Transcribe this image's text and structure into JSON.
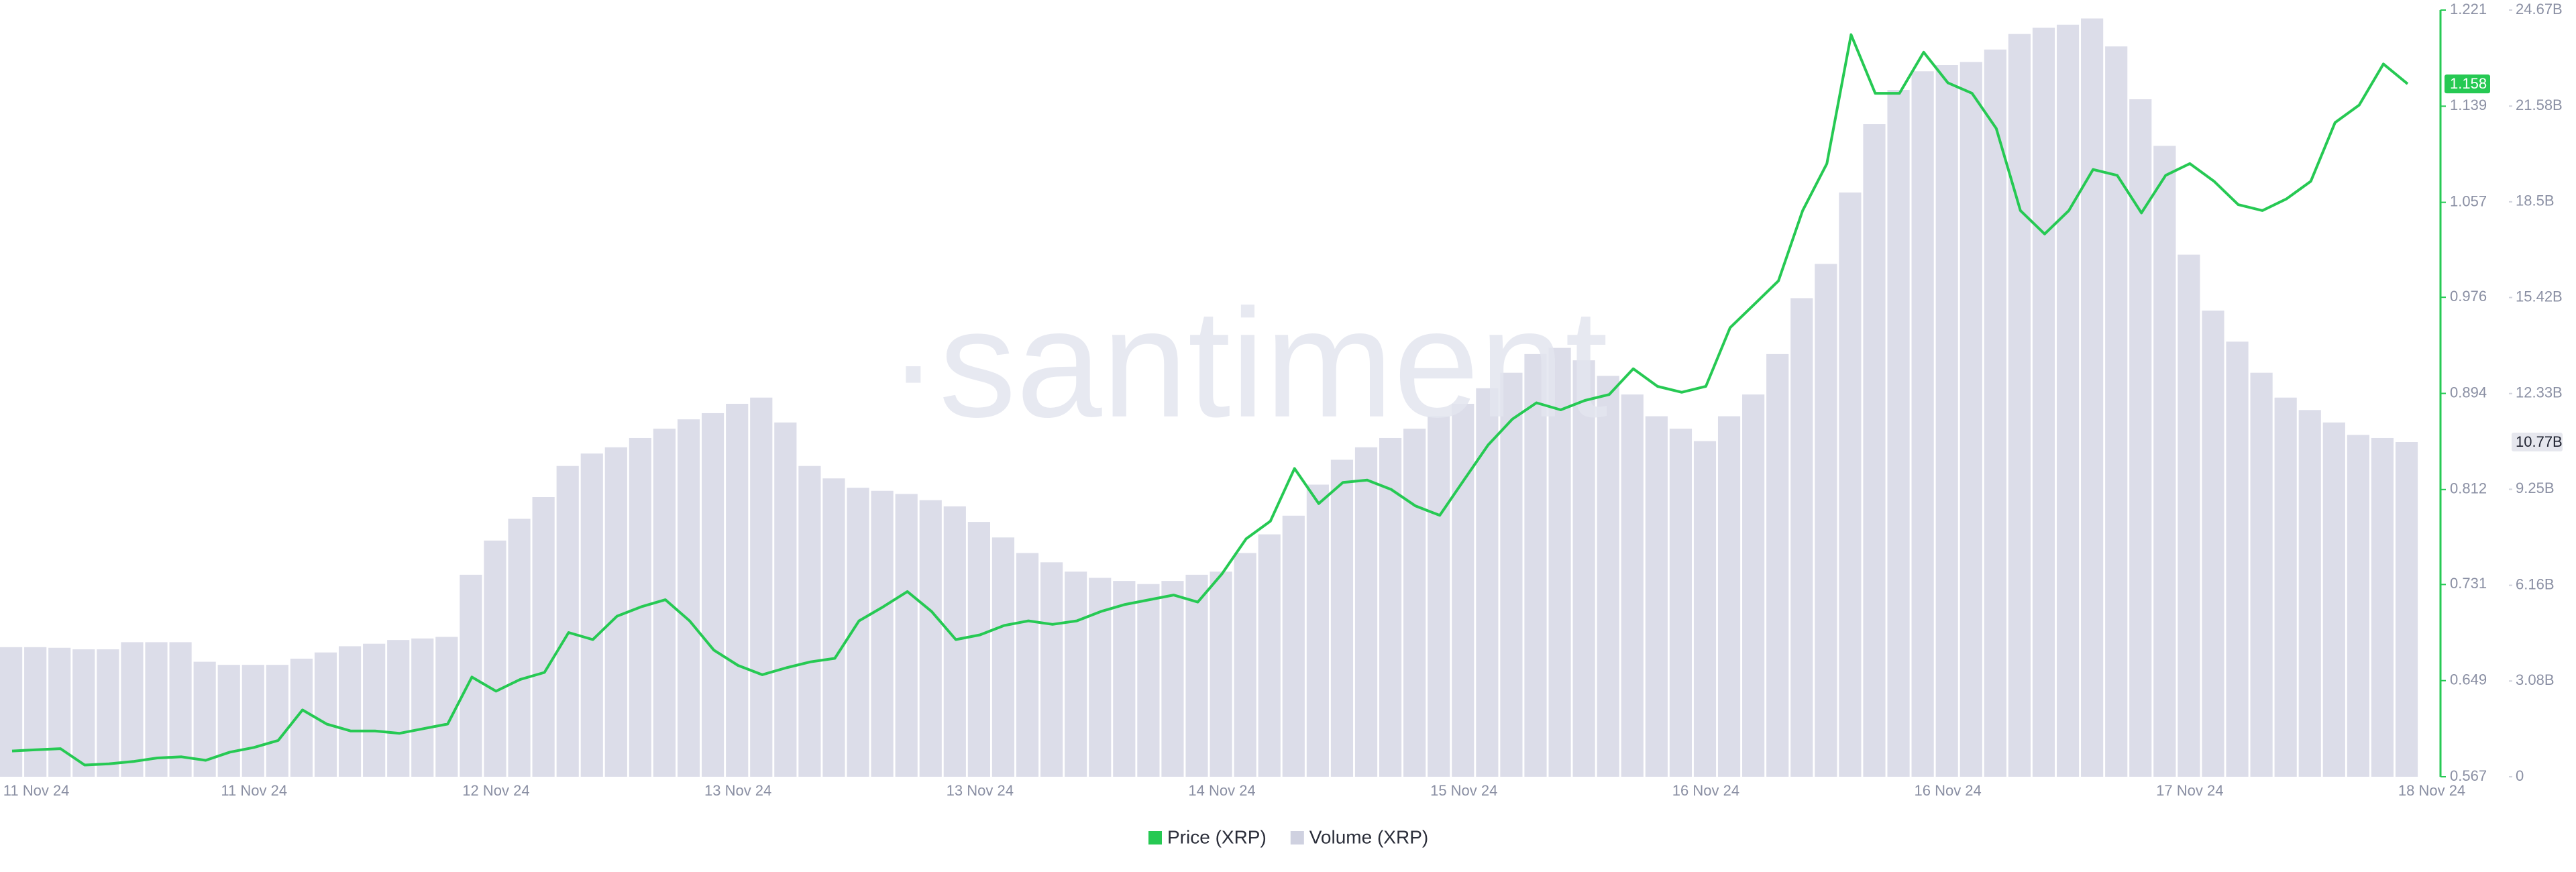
{
  "chart_data": {
    "type": "line",
    "watermark": "·santiment",
    "categories": [
      null,
      "11 Nov 24",
      null,
      null,
      null,
      null,
      null,
      null,
      null,
      null,
      "11 Nov 24",
      null,
      null,
      null,
      null,
      null,
      null,
      null,
      null,
      null,
      "12 Nov 24",
      null,
      null,
      null,
      null,
      null,
      null,
      null,
      null,
      null,
      "13 Nov 24",
      null,
      null,
      null,
      null,
      null,
      null,
      null,
      null,
      null,
      "13 Nov 24",
      null,
      null,
      null,
      null,
      null,
      null,
      null,
      null,
      null,
      "14 Nov 24",
      null,
      null,
      null,
      null,
      null,
      null,
      null,
      null,
      null,
      "15 Nov 24",
      null,
      null,
      null,
      null,
      null,
      null,
      null,
      null,
      null,
      "16 Nov 24",
      null,
      null,
      null,
      null,
      null,
      null,
      null,
      null,
      null,
      "16 Nov 24",
      null,
      null,
      null,
      null,
      null,
      null,
      null,
      null,
      null,
      "17 Nov 24",
      null,
      null,
      null,
      null,
      null,
      null,
      null,
      null,
      null,
      "18 Nov 24"
    ],
    "series": [
      {
        "name": "Price (XRP)",
        "color": "#26c953",
        "axis": "y",
        "values": [
          0.589,
          0.59,
          0.591,
          0.577,
          0.578,
          0.58,
          0.583,
          0.584,
          0.581,
          0.588,
          0.592,
          0.598,
          0.624,
          0.612,
          0.606,
          0.606,
          0.604,
          0.608,
          0.612,
          0.652,
          0.64,
          0.65,
          0.656,
          0.69,
          0.684,
          0.704,
          0.712,
          0.718,
          0.7,
          0.675,
          0.662,
          0.654,
          0.66,
          0.665,
          0.668,
          0.7,
          0.712,
          0.725,
          0.708,
          0.684,
          0.688,
          0.696,
          0.7,
          0.697,
          0.7,
          0.708,
          0.714,
          0.718,
          0.722,
          0.716,
          0.74,
          0.77,
          0.785,
          0.83,
          0.8,
          0.818,
          0.82,
          0.812,
          0.798,
          0.79,
          0.82,
          0.85,
          0.872,
          0.886,
          0.88,
          0.888,
          0.893,
          0.915,
          0.9,
          0.895,
          0.9,
          0.95,
          0.97,
          0.99,
          1.05,
          1.09,
          1.2,
          1.15,
          1.15,
          1.185,
          1.159,
          1.15,
          1.12,
          1.05,
          1.03,
          1.05,
          1.085,
          1.08,
          1.048,
          1.08,
          1.09,
          1.075,
          1.055,
          1.05,
          1.06,
          1.075,
          1.125,
          1.14,
          1.175,
          1.158,
          null
        ]
      },
      {
        "name": "Volume (XRP)",
        "color": "#dcdde9",
        "axis": "y2",
        "values": [
          4170000000.0,
          4170000000.0,
          4150000000.0,
          4100000000.0,
          4100000000.0,
          4330000000.0,
          4330000000.0,
          4330000000.0,
          3700000000.0,
          3600000000.0,
          3600000000.0,
          3600000000.0,
          3800000000.0,
          4000000000.0,
          4200000000.0,
          4280000000.0,
          4400000000.0,
          4450000000.0,
          4500000000.0,
          6500000000.0,
          7600000000.0,
          8300000000.0,
          9000000000.0,
          10000000000.0,
          10400000000.0,
          10600000000.0,
          10900000000.0,
          11200000000.0,
          11500000000.0,
          11700000000.0,
          12000000000.0,
          12200000000.0,
          11400000000.0,
          10000000000.0,
          9600000000.0,
          9300000000.0,
          9200000000.0,
          9100000000.0,
          8900000000.0,
          8700000000.0,
          8200000000.0,
          7700000000.0,
          7200000000.0,
          6900000000.0,
          6600000000.0,
          6400000000.0,
          6300000000.0,
          6200000000.0,
          6300000000.0,
          6500000000.0,
          6600000000.0,
          7200000000.0,
          7800000000.0,
          8400000000.0,
          9400000000.0,
          10200000000.0,
          10600000000.0,
          10900000000.0,
          11200000000.0,
          11600000000.0,
          12000000000.0,
          12500000000.0,
          13000000000.0,
          13600000000.0,
          13800000000.0,
          13400000000.0,
          12900000000.0,
          12300000000.0,
          11600000000.0,
          11200000000.0,
          10800000000.0,
          11600000000.0,
          12300000000.0,
          13600000000.0,
          15400000000.0,
          16500000000.0,
          18800000000.0,
          21000000000.0,
          22100000000.0,
          22700000000.0,
          22900000000.0,
          23000000000.0,
          23400000000.0,
          23900000000.0,
          24100000000.0,
          24200000000.0,
          24400000000.0,
          23500000000.0,
          21800000000.0,
          20300000000.0,
          16800000000.0,
          15000000000.0,
          14000000000.0,
          13000000000.0,
          12200000000.0,
          11800000000.0,
          11400000000.0,
          11000000000.0,
          10900000000.0,
          10770000000.0,
          null
        ],
        "value_labels": [
          null,
          null,
          null,
          null,
          null,
          null,
          null,
          null,
          null,
          null,
          null,
          null,
          null,
          null,
          null,
          null,
          null,
          null,
          null,
          null,
          null,
          null,
          null,
          null,
          null,
          null,
          null,
          null,
          null,
          null,
          null,
          null,
          null,
          null,
          null,
          null,
          null,
          null,
          null,
          null,
          null,
          null,
          null,
          null,
          null,
          null,
          null,
          null,
          null,
          null,
          null,
          null,
          null,
          null,
          null,
          null,
          null,
          null,
          null,
          null,
          null,
          null,
          null,
          null,
          null,
          null,
          null,
          null,
          null,
          null,
          null,
          null,
          null,
          null,
          null,
          null,
          null,
          null,
          null,
          null,
          null,
          null,
          null,
          null,
          null,
          null,
          null,
          null,
          null,
          null,
          null,
          null,
          null,
          null,
          null,
          null,
          null,
          null,
          null,
          "10.77B",
          null
        ]
      }
    ],
    "ylim": [
      0.567,
      1.221
    ],
    "yticks": [
      0.567,
      0.649,
      0.731,
      0.812,
      0.894,
      0.976,
      1.057,
      1.139,
      1.221
    ],
    "y2lim": [
      0,
      24670000000
    ],
    "y2ticks": [
      0,
      {
        "value": 3080000000,
        "label": "3.08B"
      },
      {
        "value": 6160000000,
        "label": "6.16B"
      },
      {
        "value": 9250000000,
        "label": "9.25B"
      },
      {
        "value": 12330000000,
        "label": "12.33B"
      },
      {
        "value": 15420000000,
        "label": "15.42B"
      },
      {
        "value": 18500000000,
        "label": "18.5B"
      },
      {
        "value": 21580000000,
        "label": "21.58B"
      },
      {
        "value": 24670000000,
        "label": "24.67B"
      }
    ],
    "grid": false,
    "legend": "bottom"
  }
}
